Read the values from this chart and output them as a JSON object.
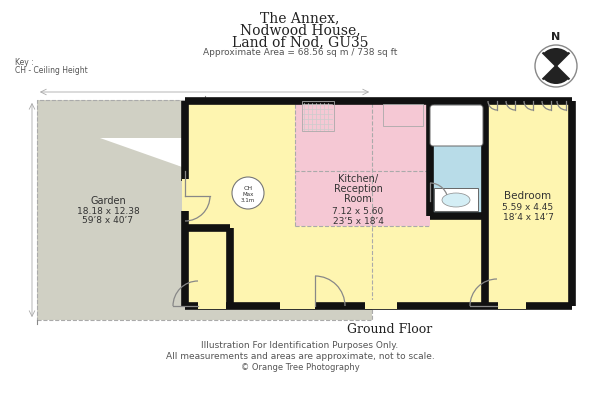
{
  "title_lines": [
    "The Annex,",
    "Nodwood House,",
    "Land of Nod, GU35"
  ],
  "approx_area": "Approximate Area = 68.56 sq m / 738 sq ft",
  "key_lines": [
    "Key :",
    "CH - Ceiling Height"
  ],
  "ground_floor_label": "Ground Floor",
  "footer_lines": [
    "Illustration For Identification Purposes Only.",
    "All measurements and areas are approximate, not to scale.",
    "© Orange Tree Photography"
  ],
  "bg_color": "#ffffff",
  "garden_color": "#d0d0c4",
  "kitchen_color": "#f5c8d4",
  "bedroom_color": "#fef5b0",
  "bathroom_color": "#b8dce8",
  "wall_color": "#111111",
  "floor_color": "#fef5b0",
  "dashed_color": "#aaaaaa",
  "garden_label": [
    "Garden",
    "18.18 x 12.38",
    "59’8 x 40’7"
  ],
  "kitchen_label": [
    "Kitchen/",
    "Reception",
    "Room",
    "7.12 x 5.60",
    "23’5 x 18’4"
  ],
  "bedroom_label": [
    "Bedroom",
    "5.59 x 4.45",
    "18’4 x 14’7"
  ],
  "ch_label": [
    "CH",
    "Max",
    "3.1m"
  ]
}
